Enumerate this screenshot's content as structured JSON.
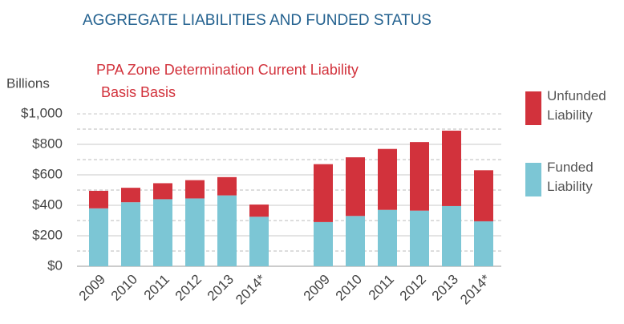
{
  "chart_data": {
    "type": "stacked_bar",
    "title": "AGGREGATE LIABILITIES AND FUNDED STATUS",
    "annotations": [
      "PPA Zone Determination Current Liability",
      "Basis Basis"
    ],
    "y_label": "Billions",
    "categories": [
      "2009",
      "2010",
      "2011",
      "2012",
      "2013",
      "2014*",
      null,
      "2009",
      "2010",
      "2011",
      "2012",
      "2013",
      "2014*"
    ],
    "series": [
      {
        "name": "Funded Liability",
        "color": "#7cc6d5",
        "values": [
          380,
          420,
          440,
          445,
          465,
          325,
          null,
          290,
          330,
          370,
          365,
          395,
          295
        ]
      },
      {
        "name": "Unfunded Liability",
        "color": "#d2323c",
        "values": [
          115,
          95,
          105,
          120,
          120,
          80,
          null,
          380,
          385,
          400,
          450,
          495,
          335
        ]
      }
    ],
    "ylim": [
      0,
      1000
    ],
    "yticks": [
      {
        "value": 0,
        "label": "$0"
      },
      {
        "value": 200,
        "label": "$200"
      },
      {
        "value": 400,
        "label": "$400"
      },
      {
        "value": 600,
        "label": "$600"
      },
      {
        "value": 800,
        "label": "$800"
      },
      {
        "value": 1000,
        "label": "$1,000"
      }
    ],
    "yminorticks": [
      100,
      300,
      500,
      700,
      900
    ],
    "grid": true
  }
}
